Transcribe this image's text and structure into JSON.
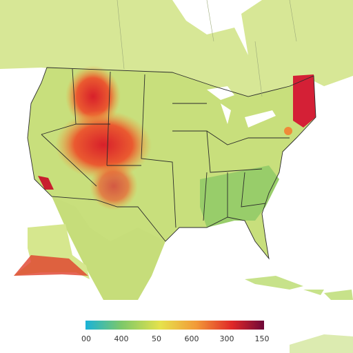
{
  "legend": {
    "labels": [
      "00",
      "400",
      "50",
      "600",
      "300",
      "150"
    ]
  }
}
